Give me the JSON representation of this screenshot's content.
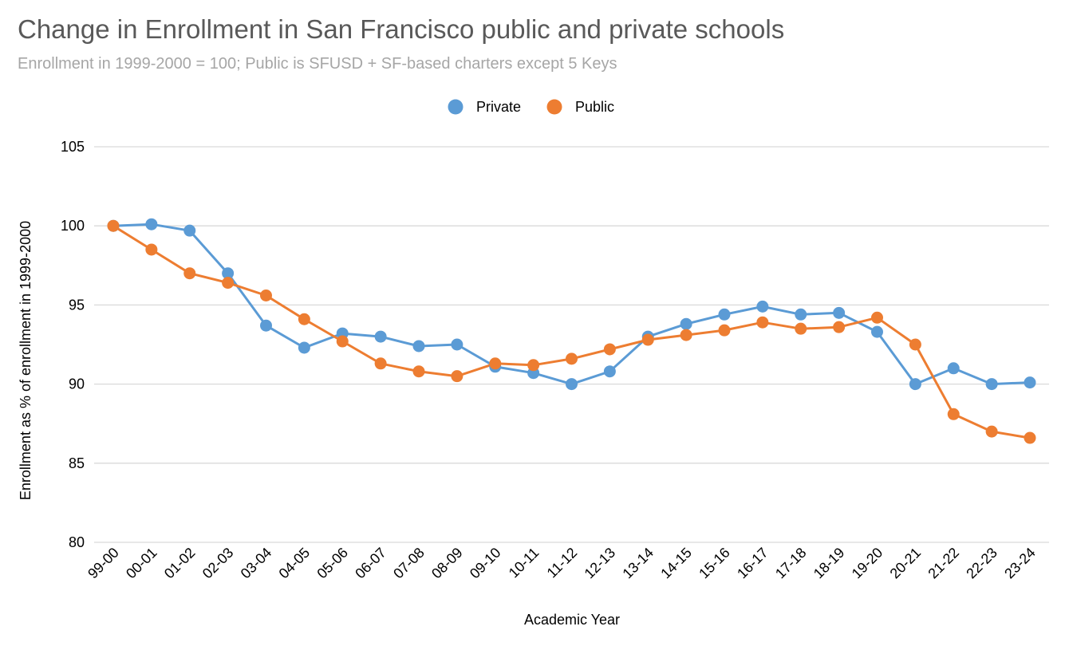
{
  "title": "Change in Enrollment in San Francisco public and private schools",
  "subtitle": "Enrollment in 1999-2000 = 100; Public is SFUSD + SF-based charters except 5 Keys",
  "chart_data": {
    "type": "line",
    "title": "Change in Enrollment in San Francisco public and private schools",
    "subtitle": "Enrollment in 1999-2000 = 100; Public is SFUSD + SF-based charters except 5 Keys",
    "xlabel": "Academic Year",
    "ylabel": "Enrollment as % of enrollment in 1999-2000",
    "ylim": [
      80,
      105
    ],
    "yticks": [
      80,
      85,
      90,
      95,
      100,
      105
    ],
    "grid": true,
    "legend_position": "top-center",
    "categories": [
      "99-00",
      "00-01",
      "01-02",
      "02-03",
      "03-04",
      "04-05",
      "05-06",
      "06-07",
      "07-08",
      "08-09",
      "09-10",
      "10-11",
      "11-12",
      "12-13",
      "13-14",
      "14-15",
      "15-16",
      "16-17",
      "17-18",
      "18-19",
      "19-20",
      "20-21",
      "21-22",
      "22-23",
      "23-24"
    ],
    "series": [
      {
        "name": "Private",
        "color": "#5b9bd5",
        "values": [
          100,
          100.1,
          99.7,
          97.0,
          93.7,
          92.3,
          93.2,
          93.0,
          92.4,
          92.5,
          91.1,
          90.7,
          90.0,
          90.8,
          93.0,
          93.8,
          94.4,
          94.9,
          94.4,
          94.5,
          93.3,
          90.0,
          91.0,
          90.0,
          90.1
        ]
      },
      {
        "name": "Public",
        "color": "#ed7d31",
        "values": [
          100,
          98.5,
          97.0,
          96.4,
          95.6,
          94.1,
          92.7,
          91.3,
          90.8,
          90.5,
          91.3,
          91.2,
          91.6,
          92.2,
          92.8,
          93.1,
          93.4,
          93.9,
          93.5,
          93.6,
          94.2,
          92.5,
          88.1,
          87.0,
          86.6
        ]
      }
    ]
  }
}
